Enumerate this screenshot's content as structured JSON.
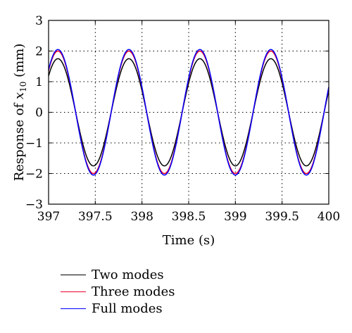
{
  "chart_data": {
    "type": "line",
    "title": "",
    "xlabel": "Time (s)",
    "ylabel_prefix": "Response of ",
    "ylabel_var": "x",
    "ylabel_sub": "10",
    "ylabel_unit": " (mm)",
    "xlim": [
      397,
      400
    ],
    "ylim": [
      -3,
      3
    ],
    "xticks": [
      397,
      397.5,
      398,
      398.5,
      399,
      399.5,
      400
    ],
    "xtick_labels": [
      "397",
      "397.5",
      "398",
      "398.5",
      "399",
      "399.5",
      "400"
    ],
    "yticks": [
      -3,
      -2,
      -1,
      0,
      1,
      2,
      3
    ],
    "ytick_labels": [
      "−3",
      "−2",
      "−1",
      "0",
      "1",
      "2",
      "3"
    ],
    "grid": true,
    "grid_style": "dotted",
    "legend_position": "below",
    "period_s": 0.76,
    "peak_time_s": 397.1,
    "series": [
      {
        "name": "Two modes",
        "color": "#000000",
        "amplitude": 1.75
      },
      {
        "name": "Three modes",
        "color": "#e8002a",
        "amplitude": 2.0
      },
      {
        "name": "Full modes",
        "color": "#0000ff",
        "amplitude": 2.05
      }
    ]
  }
}
